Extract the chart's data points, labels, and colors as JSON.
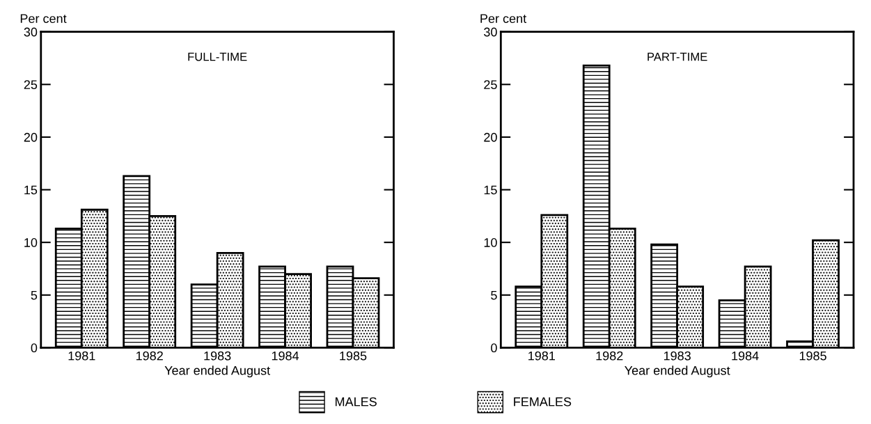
{
  "chart_data": [
    {
      "type": "bar",
      "title": "FULL-TIME",
      "ylabel": "Per cent",
      "xlabel": "Year ended August",
      "categories": [
        "1981",
        "1982",
        "1983",
        "1984",
        "1985"
      ],
      "series": [
        {
          "name": "MALES",
          "color": "#000000",
          "values": [
            11.3,
            16.3,
            6.0,
            7.7,
            7.7
          ]
        },
        {
          "name": "FEMALES",
          "color": "#000000",
          "values": [
            13.1,
            12.5,
            9.0,
            7.0,
            6.6
          ]
        }
      ],
      "ylim": [
        0,
        30
      ],
      "yticks": [
        0,
        5,
        10,
        15,
        20,
        25,
        30
      ],
      "grid": false,
      "legend": "bottom"
    },
    {
      "type": "bar",
      "title": "PART-TIME",
      "ylabel": "Per cent",
      "xlabel": "Year ended August",
      "categories": [
        "1981",
        "1982",
        "1983",
        "1984",
        "1985"
      ],
      "series": [
        {
          "color": "#000000",
          "values": [
            5.8,
            26.8,
            9.8,
            4.5,
            0.6
          ]
        },
        {
          "color": "#000000",
          "values": [
            12.6,
            11.3,
            5.8,
            7.7,
            10.2
          ]
        }
      ],
      "ylim": [
        0,
        30
      ],
      "yticks": [
        0,
        5,
        10,
        15,
        20,
        25,
        30
      ],
      "grid": false
    }
  ]
}
